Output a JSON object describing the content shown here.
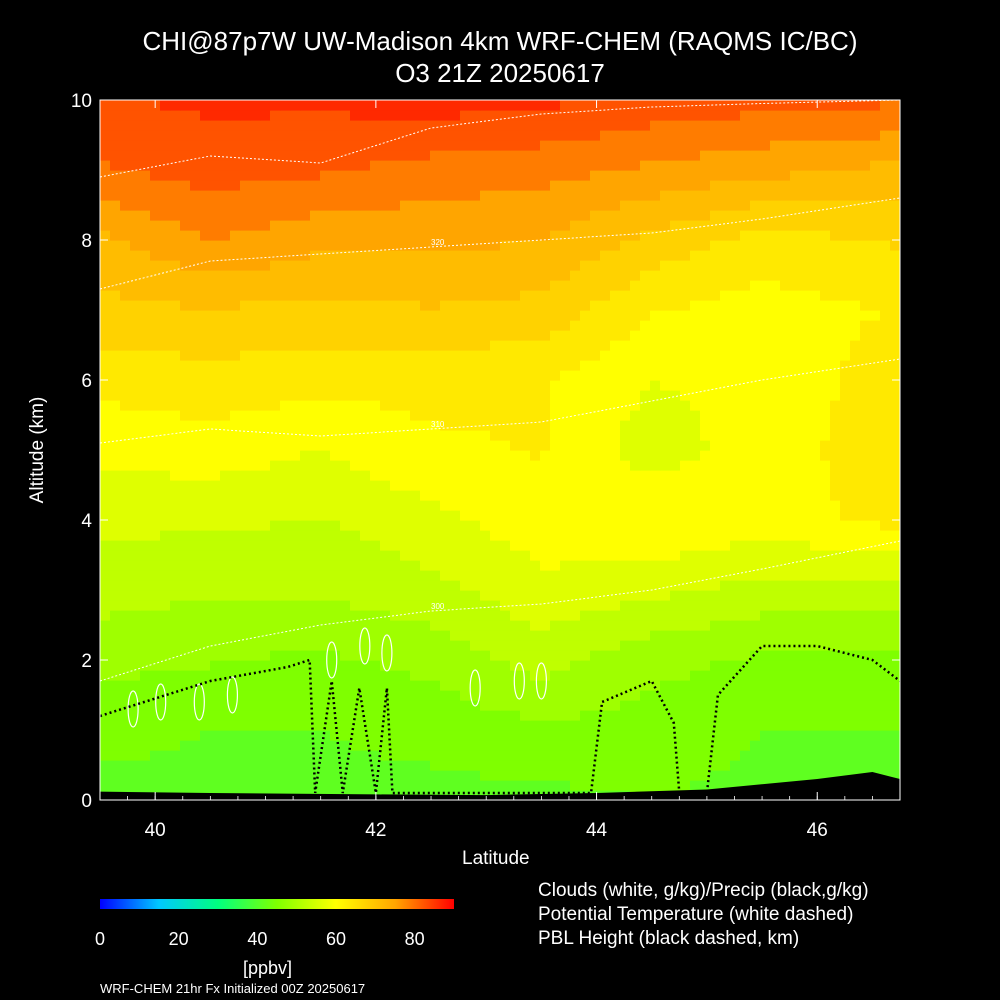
{
  "title": {
    "line1": "CHI@87p7W UW-Madison 4km WRF-CHEM (RAQMS IC/BC)",
    "line2": "O3 21Z 20250617"
  },
  "legend": {
    "clouds": "Clouds (white, g/kg)/Precip (black,g/kg)",
    "theta": "Potential Temperature (white dashed)",
    "pbl": "PBL Height (black dashed, km)"
  },
  "colorbar": {
    "unit": "[ppbv]",
    "ticks": [
      "0",
      "20",
      "40",
      "60",
      "80"
    ],
    "tick_values": [
      0,
      20,
      40,
      60,
      80
    ],
    "range": [
      0,
      90
    ],
    "colors": [
      "#0000ff",
      "#00c8ff",
      "#00ff7f",
      "#7fff00",
      "#ffff00",
      "#ffa500",
      "#ff0000"
    ]
  },
  "footer": "WRF-CHEM 21hr  Fx Initialized 00Z 20250617",
  "chart_data": {
    "type": "heatmap",
    "variable": "O3",
    "xlabel": "Latitude",
    "ylabel": "Altitude (km)",
    "xlim": [
      39.5,
      46.75
    ],
    "ylim": [
      0,
      10
    ],
    "x_ticks": [
      40,
      42,
      44,
      46
    ],
    "y_ticks": [
      0,
      2,
      4,
      6,
      8,
      10
    ],
    "lat_grid": [
      39.5,
      40.5,
      41.5,
      42.5,
      43.5,
      44.5,
      45.5,
      46.75
    ],
    "alt_grid": [
      0,
      1,
      2,
      3,
      4,
      5,
      6,
      7,
      8,
      9,
      10
    ],
    "o3_ppbv": [
      [
        44,
        44,
        44,
        44,
        44,
        45,
        44,
        44
      ],
      [
        46,
        45,
        45,
        46,
        48,
        47,
        45,
        45
      ],
      [
        50,
        49,
        48,
        50,
        54,
        50,
        48,
        48
      ],
      [
        54,
        53,
        53,
        55,
        59,
        57,
        55,
        54
      ],
      [
        57,
        57,
        56,
        59,
        62,
        64,
        62,
        65
      ],
      [
        61,
        62,
        60,
        63,
        64,
        58,
        62,
        66
      ],
      [
        65,
        66,
        65,
        65,
        64,
        60,
        61,
        66
      ],
      [
        70,
        71,
        70,
        71,
        70,
        64,
        62,
        64
      ],
      [
        74,
        79,
        76,
        76,
        75,
        70,
        66,
        68
      ],
      [
        82,
        84,
        83,
        81,
        80,
        78,
        76,
        74
      ],
      [
        86,
        87,
        87,
        88,
        87,
        85,
        84,
        83
      ]
    ],
    "theta_contours": [
      {
        "label": "300",
        "altitude_km": [
          1.7,
          2.2,
          2.5,
          2.7,
          2.8,
          3.0,
          3.3,
          3.7
        ]
      },
      {
        "label": "310",
        "altitude_km": [
          5.1,
          5.3,
          5.2,
          5.3,
          5.4,
          5.7,
          6.0,
          6.3
        ]
      },
      {
        "label": "320",
        "altitude_km": [
          7.3,
          7.7,
          7.8,
          7.9,
          8.0,
          8.1,
          8.3,
          8.6
        ]
      },
      {
        "label": "",
        "altitude_km": [
          8.9,
          9.2,
          9.1,
          9.6,
          9.8,
          9.9,
          9.95,
          10.0
        ]
      }
    ],
    "pbl_height_km": [
      {
        "lat": 39.5,
        "alt": 1.2
      },
      {
        "lat": 39.9,
        "alt": 1.4
      },
      {
        "lat": 40.5,
        "alt": 1.7
      },
      {
        "lat": 41.2,
        "alt": 1.9
      },
      {
        "lat": 41.4,
        "alt": 2.0
      },
      {
        "lat": 41.45,
        "alt": 0.1
      },
      {
        "lat": 41.6,
        "alt": 1.7
      },
      {
        "lat": 41.7,
        "alt": 0.1
      },
      {
        "lat": 41.85,
        "alt": 1.6
      },
      {
        "lat": 42.0,
        "alt": 0.1
      },
      {
        "lat": 42.1,
        "alt": 1.6
      },
      {
        "lat": 42.15,
        "alt": 0.1
      },
      {
        "lat": 43.95,
        "alt": 0.1
      },
      {
        "lat": 44.05,
        "alt": 1.4
      },
      {
        "lat": 44.5,
        "alt": 1.7
      },
      {
        "lat": 44.7,
        "alt": 1.1
      },
      {
        "lat": 44.75,
        "alt": 0.1
      },
      {
        "lat": 45.0,
        "alt": 0.1
      },
      {
        "lat": 45.1,
        "alt": 1.5
      },
      {
        "lat": 45.5,
        "alt": 2.2
      },
      {
        "lat": 46.0,
        "alt": 2.2
      },
      {
        "lat": 46.5,
        "alt": 2.0
      },
      {
        "lat": 46.75,
        "alt": 1.7
      }
    ],
    "terrain_km": [
      {
        "lat": 39.5,
        "alt": 0.12
      },
      {
        "lat": 40.5,
        "alt": 0.1
      },
      {
        "lat": 42.0,
        "alt": 0.08
      },
      {
        "lat": 43.0,
        "alt": 0.07
      },
      {
        "lat": 44.0,
        "alt": 0.1
      },
      {
        "lat": 45.0,
        "alt": 0.15
      },
      {
        "lat": 46.0,
        "alt": 0.3
      },
      {
        "lat": 46.5,
        "alt": 0.4
      },
      {
        "lat": 46.75,
        "alt": 0.3
      }
    ],
    "cloud_features": [
      {
        "lat": 39.8,
        "alt": 1.3
      },
      {
        "lat": 40.05,
        "alt": 1.4
      },
      {
        "lat": 40.4,
        "alt": 1.4
      },
      {
        "lat": 40.7,
        "alt": 1.5
      },
      {
        "lat": 41.6,
        "alt": 2.0
      },
      {
        "lat": 41.9,
        "alt": 2.2
      },
      {
        "lat": 42.1,
        "alt": 2.1
      },
      {
        "lat": 42.9,
        "alt": 1.6
      },
      {
        "lat": 43.3,
        "alt": 1.7
      },
      {
        "lat": 43.5,
        "alt": 1.7
      }
    ]
  }
}
